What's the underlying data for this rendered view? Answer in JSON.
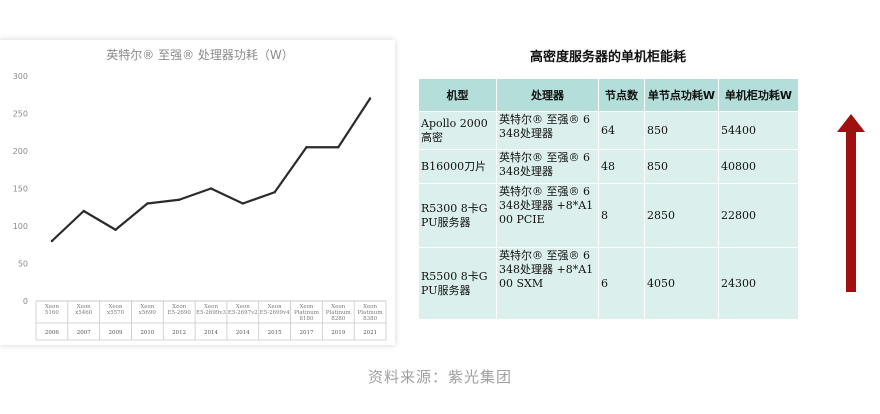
{
  "chart_data": {
    "type": "line",
    "title": "英特尔® 至强® 处理器功耗（W）",
    "categories": [
      {
        "name": "Xeon 5160",
        "year": "2006"
      },
      {
        "name": "Xeon x5460",
        "year": "2007"
      },
      {
        "name": "Xeon x5570",
        "year": "2009"
      },
      {
        "name": "Xeon x5690",
        "year": "2010"
      },
      {
        "name": "Xeon E5-2690",
        "year": "2012"
      },
      {
        "name": "Xeon E5-2699v3",
        "year": "2014"
      },
      {
        "name": "Xeon E5-2697v2",
        "year": "2014"
      },
      {
        "name": "Xeon E5-2699v4",
        "year": "2015"
      },
      {
        "name": "Xeon Platinum 8180",
        "year": "2017"
      },
      {
        "name": "Xeon Platinum 8280",
        "year": "2019"
      },
      {
        "name": "Xeon Platinum 8380",
        "year": "2021"
      }
    ],
    "values": [
      80,
      120,
      95,
      130,
      135,
      150,
      130,
      145,
      205,
      205,
      270
    ],
    "ylim": [
      0,
      300
    ],
    "yticks": [
      0,
      50,
      100,
      150,
      200,
      250,
      300
    ],
    "grid": false,
    "line_color": "#2b2b2b"
  },
  "table": {
    "title": "高密度服务器的单机柜能耗",
    "headers": [
      "机型",
      "处理器",
      "节点数",
      "单节点功耗W",
      "单机柜功耗W"
    ],
    "rows": [
      [
        "Apollo 2000高密",
        "英特尔® 至强® 6348处理器",
        "64",
        "850",
        "54400"
      ],
      [
        "B16000刀片",
        "英特尔® 至强® 6348处理器",
        "48",
        "850",
        "40800"
      ],
      [
        "R5300 8卡GPU服务器",
        "英特尔® 至强® 6348处理器 +8*A100 PCIE",
        "8",
        "2850",
        "22800"
      ],
      [
        "R5500 8卡GPU服务器",
        "英特尔® 至强® 6348处理器 +8*A100 SXM",
        "6",
        "4050",
        "24300"
      ]
    ],
    "colors": {
      "header_bg": "#b4ded9",
      "body_bg": "#dbf0ed"
    }
  },
  "arrow": {
    "icon": "up-arrow-icon",
    "color": "#a01010"
  },
  "source": "资料来源：紫光集团"
}
